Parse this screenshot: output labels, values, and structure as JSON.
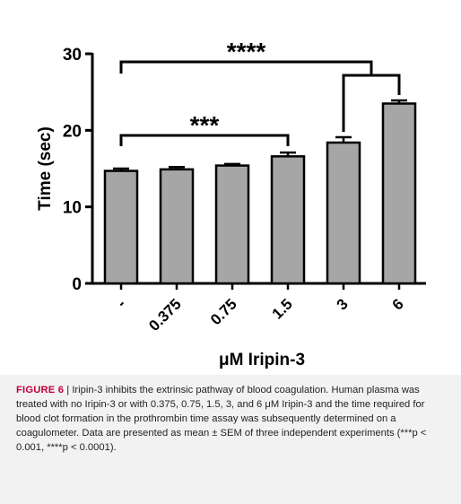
{
  "chart_data": {
    "type": "bar",
    "categories": [
      "-",
      "0.375",
      "0.75",
      "1.5",
      "3",
      "6"
    ],
    "values": [
      14.7,
      14.9,
      15.4,
      16.6,
      18.4,
      23.5
    ],
    "errors": [
      0.3,
      0.3,
      0.2,
      0.5,
      0.7,
      0.4
    ],
    "xlabel": "μM Iripin-3",
    "ylabel": "Time (sec)",
    "ylim": [
      0,
      30
    ],
    "yticks": [
      0,
      10,
      20,
      30
    ],
    "bar_color": "#a6a6a6",
    "significance": [
      {
        "from": 0,
        "to": 3,
        "label": "***"
      },
      {
        "from": 0,
        "to_pair": [
          4,
          5
        ],
        "label": "****"
      }
    ]
  },
  "caption": {
    "label": "FIGURE 6",
    "separator": " | ",
    "text": "Iripin-3 inhibits the extrinsic pathway of blood coagulation. Human plasma was treated with no Iripin-3 or with 0.375, 0.75, 1.5, 3, and 6 μM Iripin-3 and the time required for blood clot formation in the prothrombin time assay was subsequently determined on a coagulometer. Data are presented as mean ± SEM of three independent experiments (***p < 0.001, ****p < 0.0001)."
  }
}
